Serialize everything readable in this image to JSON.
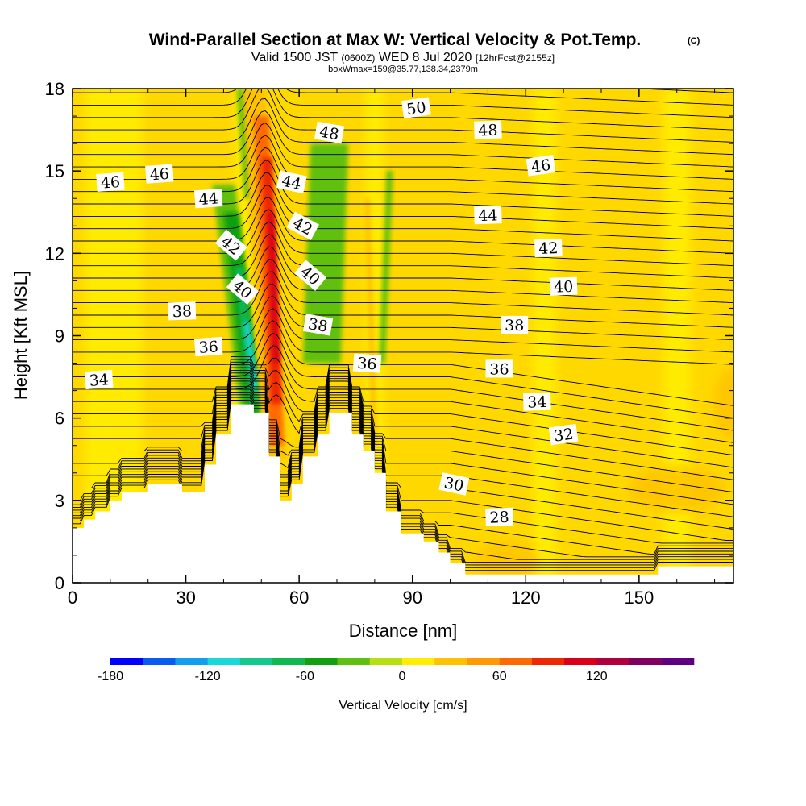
{
  "chart_data": {
    "type": "heatmap",
    "title": "Wind-Parallel Section at Max W: Vertical Velocity & Pot.Temp.",
    "title_mark": "(C)",
    "subtitle": {
      "part1": "Valid 1500 JST",
      "part2": "(0600Z)",
      "part3": "WED 8 Jul 2020",
      "part4": "[12hrFcst@2155z]"
    },
    "info_line": "boxWmax=159@35.77,138.34,2379m",
    "xlabel": "Distance [nm]",
    "ylabel": "Height [Kft MSL]",
    "xlim": [
      0,
      175
    ],
    "ylim": [
      0,
      18
    ],
    "x_ticks": [
      "0",
      "30",
      "60",
      "90",
      "120",
      "150"
    ],
    "y_ticks": [
      "0",
      "3",
      "6",
      "9",
      "12",
      "15",
      "18"
    ],
    "x_tick_values": [
      0,
      30,
      60,
      90,
      120,
      150
    ],
    "y_tick_values": [
      0,
      3,
      6,
      9,
      12,
      15,
      18
    ],
    "colorbar": {
      "label": "Vertical Velocity [cm/s]",
      "min": -180,
      "step": 20,
      "colors": [
        "#0000ff",
        "#0a5cf0",
        "#10a0ee",
        "#18d8d8",
        "#14c890",
        "#10b850",
        "#10a010",
        "#60c010",
        "#b8e010",
        "#ffee00",
        "#ffc200",
        "#ff9a00",
        "#ff6a00",
        "#ee2800",
        "#d8001a",
        "#b00040",
        "#800060",
        "#600080"
      ],
      "tick_labels": [
        "-180",
        "-120",
        "-60",
        "0",
        "60",
        "120"
      ],
      "tick_values": [
        -180,
        -120,
        -60,
        0,
        60,
        120
      ]
    },
    "terrain": [
      [
        0,
        2.0
      ],
      [
        3,
        2.0
      ],
      [
        3,
        2.3
      ],
      [
        6,
        2.3
      ],
      [
        6,
        2.6
      ],
      [
        10,
        2.6
      ],
      [
        10,
        3.0
      ],
      [
        13,
        3.0
      ],
      [
        13,
        3.3
      ],
      [
        20,
        3.3
      ],
      [
        20,
        3.6
      ],
      [
        29,
        3.6
      ],
      [
        29,
        3.3
      ],
      [
        35,
        3.3
      ],
      [
        35,
        4.3
      ],
      [
        38,
        4.3
      ],
      [
        38,
        5.4
      ],
      [
        42,
        5.4
      ],
      [
        42,
        6.5
      ],
      [
        48,
        6.5
      ],
      [
        48,
        6.2
      ],
      [
        52,
        6.2
      ],
      [
        52,
        4.6
      ],
      [
        55,
        4.6
      ],
      [
        55,
        3.0
      ],
      [
        58,
        3.0
      ],
      [
        58,
        3.6
      ],
      [
        61,
        3.6
      ],
      [
        61,
        4.6
      ],
      [
        65,
        4.6
      ],
      [
        65,
        5.4
      ],
      [
        68,
        5.4
      ],
      [
        68,
        6.2
      ],
      [
        74,
        6.2
      ],
      [
        74,
        5.4
      ],
      [
        77,
        5.4
      ],
      [
        77,
        4.8
      ],
      [
        80,
        4.8
      ],
      [
        80,
        4.0
      ],
      [
        83,
        4.0
      ],
      [
        83,
        2.6
      ],
      [
        87,
        2.6
      ],
      [
        87,
        1.8
      ],
      [
        93,
        1.8
      ],
      [
        93,
        1.5
      ],
      [
        97,
        1.5
      ],
      [
        97,
        1.1
      ],
      [
        100,
        1.1
      ],
      [
        100,
        0.7
      ],
      [
        104,
        0.7
      ],
      [
        104,
        0.3
      ],
      [
        155,
        0.3
      ],
      [
        155,
        0.6
      ],
      [
        175,
        0.6
      ]
    ],
    "theta_contour_labels": [
      {
        "value": "34",
        "x": 7,
        "y": 7.4,
        "angle": -4
      },
      {
        "value": "36",
        "x": 36,
        "y": 8.6,
        "angle": -4
      },
      {
        "value": "36",
        "x": 78,
        "y": 8.0,
        "angle": 4
      },
      {
        "value": "36",
        "x": 113,
        "y": 7.8,
        "angle": 0
      },
      {
        "value": "38",
        "x": 29,
        "y": 9.9,
        "angle": -2
      },
      {
        "value": "38",
        "x": 65,
        "y": 9.4,
        "angle": 10
      },
      {
        "value": "38",
        "x": 117,
        "y": 9.4,
        "angle": 0
      },
      {
        "value": "40",
        "x": 45,
        "y": 10.7,
        "angle": 40
      },
      {
        "value": "40",
        "x": 63,
        "y": 11.2,
        "angle": 40
      },
      {
        "value": "40",
        "x": 130,
        "y": 10.8,
        "angle": -2
      },
      {
        "value": "42",
        "x": 42,
        "y": 12.3,
        "angle": 40
      },
      {
        "value": "42",
        "x": 61,
        "y": 13.0,
        "angle": 28
      },
      {
        "value": "42",
        "x": 126,
        "y": 12.2,
        "angle": -2
      },
      {
        "value": "44",
        "x": 36,
        "y": 14.0,
        "angle": -4
      },
      {
        "value": "44",
        "x": 58,
        "y": 14.6,
        "angle": 12
      },
      {
        "value": "44",
        "x": 110,
        "y": 13.4,
        "angle": -2
      },
      {
        "value": "46",
        "x": 10,
        "y": 14.6,
        "angle": -4
      },
      {
        "value": "46",
        "x": 23,
        "y": 14.9,
        "angle": -4
      },
      {
        "value": "46",
        "x": 124,
        "y": 15.2,
        "angle": -8
      },
      {
        "value": "48",
        "x": 68,
        "y": 16.4,
        "angle": 10
      },
      {
        "value": "48",
        "x": 110,
        "y": 16.5,
        "angle": -2
      },
      {
        "value": "50",
        "x": 91,
        "y": 17.3,
        "angle": -8
      },
      {
        "value": "32",
        "x": 130,
        "y": 5.4,
        "angle": -8
      },
      {
        "value": "34",
        "x": 123,
        "y": 6.6,
        "angle": -2
      },
      {
        "value": "30",
        "x": 101,
        "y": 3.6,
        "angle": 12
      },
      {
        "value": "28",
        "x": 113,
        "y": 2.4,
        "angle": -2
      }
    ]
  }
}
